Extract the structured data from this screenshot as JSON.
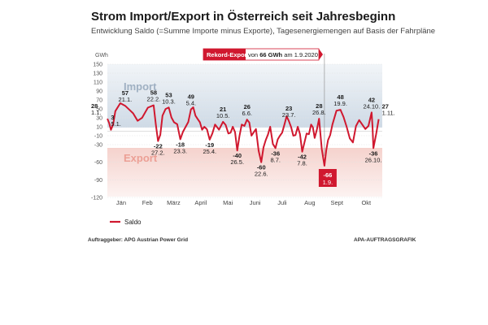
{
  "chart_data": {
    "type": "line",
    "title": "Strom Import/Export in Österreich seit Jahresbeginn",
    "subtitle": "Entwicklung Saldo (=Summe Importe minus Exporte), Tagesenergiemengen auf Basis der Fahrpläne",
    "ylabel": "GWh",
    "ylim": [
      -120,
      150
    ],
    "yticks": [
      150,
      130,
      110,
      90,
      70,
      50,
      30,
      10,
      -10,
      -30,
      -60,
      -90,
      -120
    ],
    "months": [
      "Jän",
      "Feb",
      "März",
      "April",
      "Mai",
      "Juni",
      "Juli",
      "Aug",
      "Sept",
      "Okt"
    ],
    "area_labels": {
      "import": "Import",
      "export": "Export"
    },
    "record": {
      "label": "Rekord-Export",
      "text_pre": "von",
      "value_text": "66 GWh",
      "text_mid": "am",
      "date": "1.9.2020",
      "value": -66,
      "day": 245
    },
    "annotations": [
      {
        "day": 1,
        "value": 28,
        "date": "1.1."
      },
      {
        "day": 5,
        "value": 3,
        "date": "5.1."
      },
      {
        "day": 21,
        "value": 57,
        "date": "21.1."
      },
      {
        "day": 53,
        "value": 58,
        "date": "22.2."
      },
      {
        "day": 58,
        "value": -22,
        "date": "27.2."
      },
      {
        "day": 70,
        "value": 53,
        "date": "10.3."
      },
      {
        "day": 83,
        "value": -18,
        "date": "23.3."
      },
      {
        "day": 95,
        "value": 49,
        "date": "5.4."
      },
      {
        "day": 116,
        "value": -19,
        "date": "25.4."
      },
      {
        "day": 131,
        "value": 21,
        "date": "10.5."
      },
      {
        "day": 147,
        "value": -40,
        "date": "26.5."
      },
      {
        "day": 158,
        "value": 26,
        "date": "6.6."
      },
      {
        "day": 174,
        "value": -60,
        "date": "22.6."
      },
      {
        "day": 190,
        "value": -36,
        "date": "8.7."
      },
      {
        "day": 205,
        "value": 23,
        "date": "23.7."
      },
      {
        "day": 220,
        "value": -42,
        "date": "7.8."
      },
      {
        "day": 239,
        "value": 28,
        "date": "26.8."
      },
      {
        "day": 263,
        "value": 48,
        "date": "19.9."
      },
      {
        "day": 298,
        "value": 42,
        "date": "24.10."
      },
      {
        "day": 300,
        "value": -36,
        "date": "26.10."
      },
      {
        "day": 306,
        "value": 27,
        "date": "1.11."
      }
    ],
    "series": [
      {
        "name": "Saldo",
        "color": "#d0182f",
        "x": [
          1,
          5,
          10,
          21,
          30,
          40,
          53,
          58,
          63,
          70,
          76,
          83,
          89,
          95,
          100,
          105,
          110,
          116,
          122,
          131,
          137,
          142,
          147,
          152,
          158,
          163,
          168,
          174,
          179,
          184,
          190,
          195,
          200,
          205,
          210,
          215,
          220,
          225,
          230,
          234,
          239,
          245,
          249,
          254,
          263,
          270,
          277,
          284,
          291,
          298,
          300,
          306
        ],
        "values": [
          28,
          3,
          45,
          57,
          40,
          30,
          58,
          -22,
          35,
          53,
          20,
          -18,
          10,
          49,
          35,
          20,
          10,
          -19,
          15,
          21,
          -5,
          10,
          -40,
          15,
          26,
          -10,
          5,
          -60,
          -20,
          10,
          -36,
          -10,
          15,
          23,
          -10,
          10,
          -42,
          -5,
          15,
          -15,
          28,
          -66,
          -20,
          15,
          48,
          10,
          -25,
          25,
          5,
          42,
          -36,
          27
        ]
      }
    ]
  },
  "legend": {
    "saldo": "Saldo"
  },
  "footer": {
    "source": "Auftraggeber: APG Austrian Power Grid",
    "credit": "APA-AUFTRAGSGRAFIK"
  }
}
